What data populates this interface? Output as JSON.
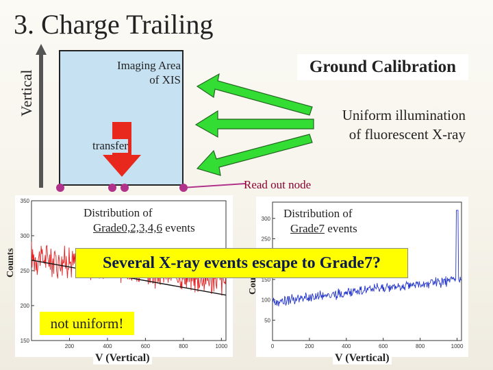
{
  "slide": {
    "title": "3. Charge Trailing",
    "vertical_label": "Vertical",
    "imaging_area_line1": "Imaging Area",
    "imaging_area_line2": "of XIS",
    "ground_calibration": "Ground Calibration",
    "uniform_line1": "Uniform illumination",
    "uniform_line2": "of fluorescent X-ray",
    "transfer": "transfer",
    "read_out_node": "Read out node",
    "banner": "Several X-ray events escape to Grade7?",
    "not_uniform": "not uniform!"
  },
  "colors": {
    "imaging_area": "#c6e1f2",
    "arrow": "#33dd33",
    "transfer_arrow": "#e8281c",
    "node": "#b0328a",
    "highlight": "#ffff00",
    "left_series": "#e61e1e",
    "right_series": "#2233cc"
  },
  "chart_data": [
    {
      "type": "line",
      "title_line1": "Distribution of",
      "title_line2_underlined": "Grade0,2,3,4,6",
      "title_line2_rest": " events",
      "xlabel": "V (Vertical)",
      "ylabel": "Counts",
      "xlim": [
        0,
        1024
      ],
      "ylim": [
        150,
        350
      ],
      "x_ticks": [
        200,
        400,
        600,
        800,
        1000
      ],
      "y_ticks": [
        150,
        200,
        250,
        300,
        350
      ],
      "series": [
        {
          "color": "#e61e1e",
          "trend": [
            [
              0,
              270
            ],
            [
              1024,
              235
            ]
          ],
          "noise": 18
        },
        {
          "color": "#111111",
          "fit_line": [
            [
              0,
              265
            ],
            [
              1024,
              215
            ]
          ]
        }
      ]
    },
    {
      "type": "line",
      "title_line1": "Distribution of",
      "title_line2_underlined": "Grade7",
      "title_line2_rest": " events",
      "xlabel": "V (Vertical)",
      "ylabel": "Counts",
      "xlim": [
        0,
        1024
      ],
      "ylim": [
        0,
        340
      ],
      "x_ticks": [
        0,
        200,
        400,
        600,
        800,
        1000
      ],
      "y_ticks": [
        50,
        100,
        150,
        200,
        250,
        300
      ],
      "series": [
        {
          "color": "#2233cc",
          "trend": [
            [
              0,
              95
            ],
            [
              1024,
              150
            ]
          ],
          "noise": 10,
          "spike_at": 1000,
          "spike_value": 320
        }
      ]
    }
  ]
}
